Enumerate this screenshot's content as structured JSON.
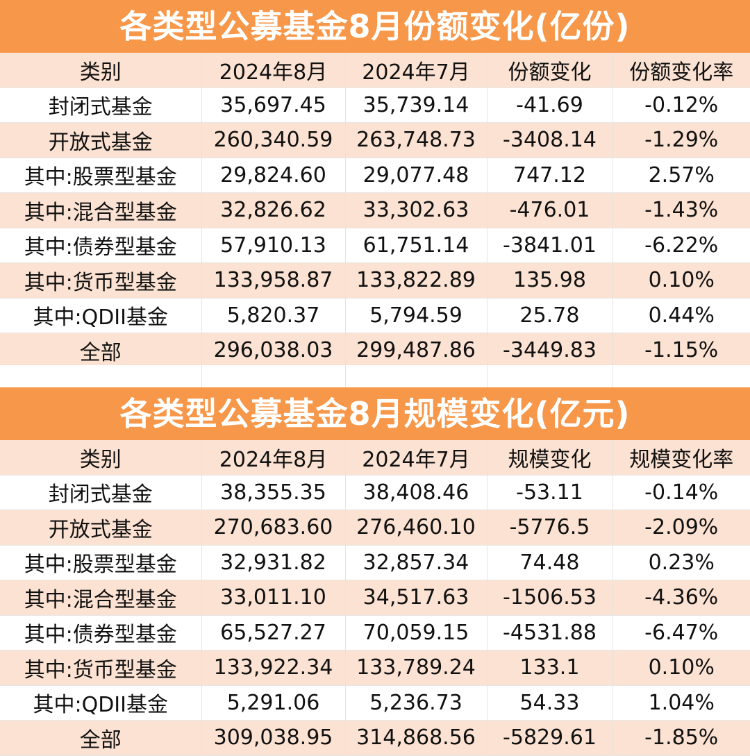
{
  "share_table": {
    "title": "各类型公募基金8月份额变化(亿份)",
    "headers": [
      "类别",
      "2024年8月",
      "2024年7月",
      "份额变化",
      "份额变化率"
    ],
    "rows": [
      [
        "封闭式基金",
        "35,697.45",
        "35,739.14",
        "-41.69",
        "-0.12%"
      ],
      [
        "开放式基金",
        "260,340.59",
        "263,748.73",
        "-3408.14",
        "-1.29%"
      ],
      [
        "其中:股票型基金",
        "29,824.60",
        "29,077.48",
        "747.12",
        "2.57%"
      ],
      [
        "其中:混合型基金",
        "32,826.62",
        "33,302.63",
        "-476.01",
        "-1.43%"
      ],
      [
        "其中:债券型基金",
        "57,910.13",
        "61,751.14",
        "-3841.01",
        "-6.22%"
      ],
      [
        "其中:货币型基金",
        "133,958.87",
        "133,822.89",
        "135.98",
        "0.10%"
      ],
      [
        "其中:QDII基金",
        "5,820.37",
        "5,794.59",
        "25.78",
        "0.44%"
      ],
      [
        "全部",
        "296,038.03",
        "299,487.86",
        "-3449.83",
        "-1.15%"
      ]
    ]
  },
  "scale_table": {
    "title": "各类型公募基金8月规模变化(亿元)",
    "headers": [
      "类别",
      "2024年8月",
      "2024年7月",
      "规模变化",
      "规模变化率"
    ],
    "rows": [
      [
        "封闭式基金",
        "38,355.35",
        "38,408.46",
        "-53.11",
        "-0.14%"
      ],
      [
        "开放式基金",
        "270,683.60",
        "276,460.10",
        "-5776.5",
        "-2.09%"
      ],
      [
        "其中:股票型基金",
        "32,931.82",
        "32,857.34",
        "74.48",
        "0.23%"
      ],
      [
        "其中:混合型基金",
        "33,011.10",
        "34,517.63",
        "-1506.53",
        "-4.36%"
      ],
      [
        "其中:债券型基金",
        "65,527.27",
        "70,059.15",
        "-4531.88",
        "-6.47%"
      ],
      [
        "其中:货币型基金",
        "133,922.34",
        "133,789.24",
        "133.1",
        "0.10%"
      ],
      [
        "其中:QDII基金",
        "5,291.06",
        "5,236.73",
        "54.33",
        "1.04%"
      ],
      [
        "全部",
        "309,038.95",
        "314,868.56",
        "-5829.61",
        "-1.85%"
      ]
    ]
  },
  "colors": {
    "title_bg": "#f7974a",
    "title_text": "#ffffff",
    "row_shaded": "#fbe2d2",
    "row_plain": "#ffffff"
  }
}
